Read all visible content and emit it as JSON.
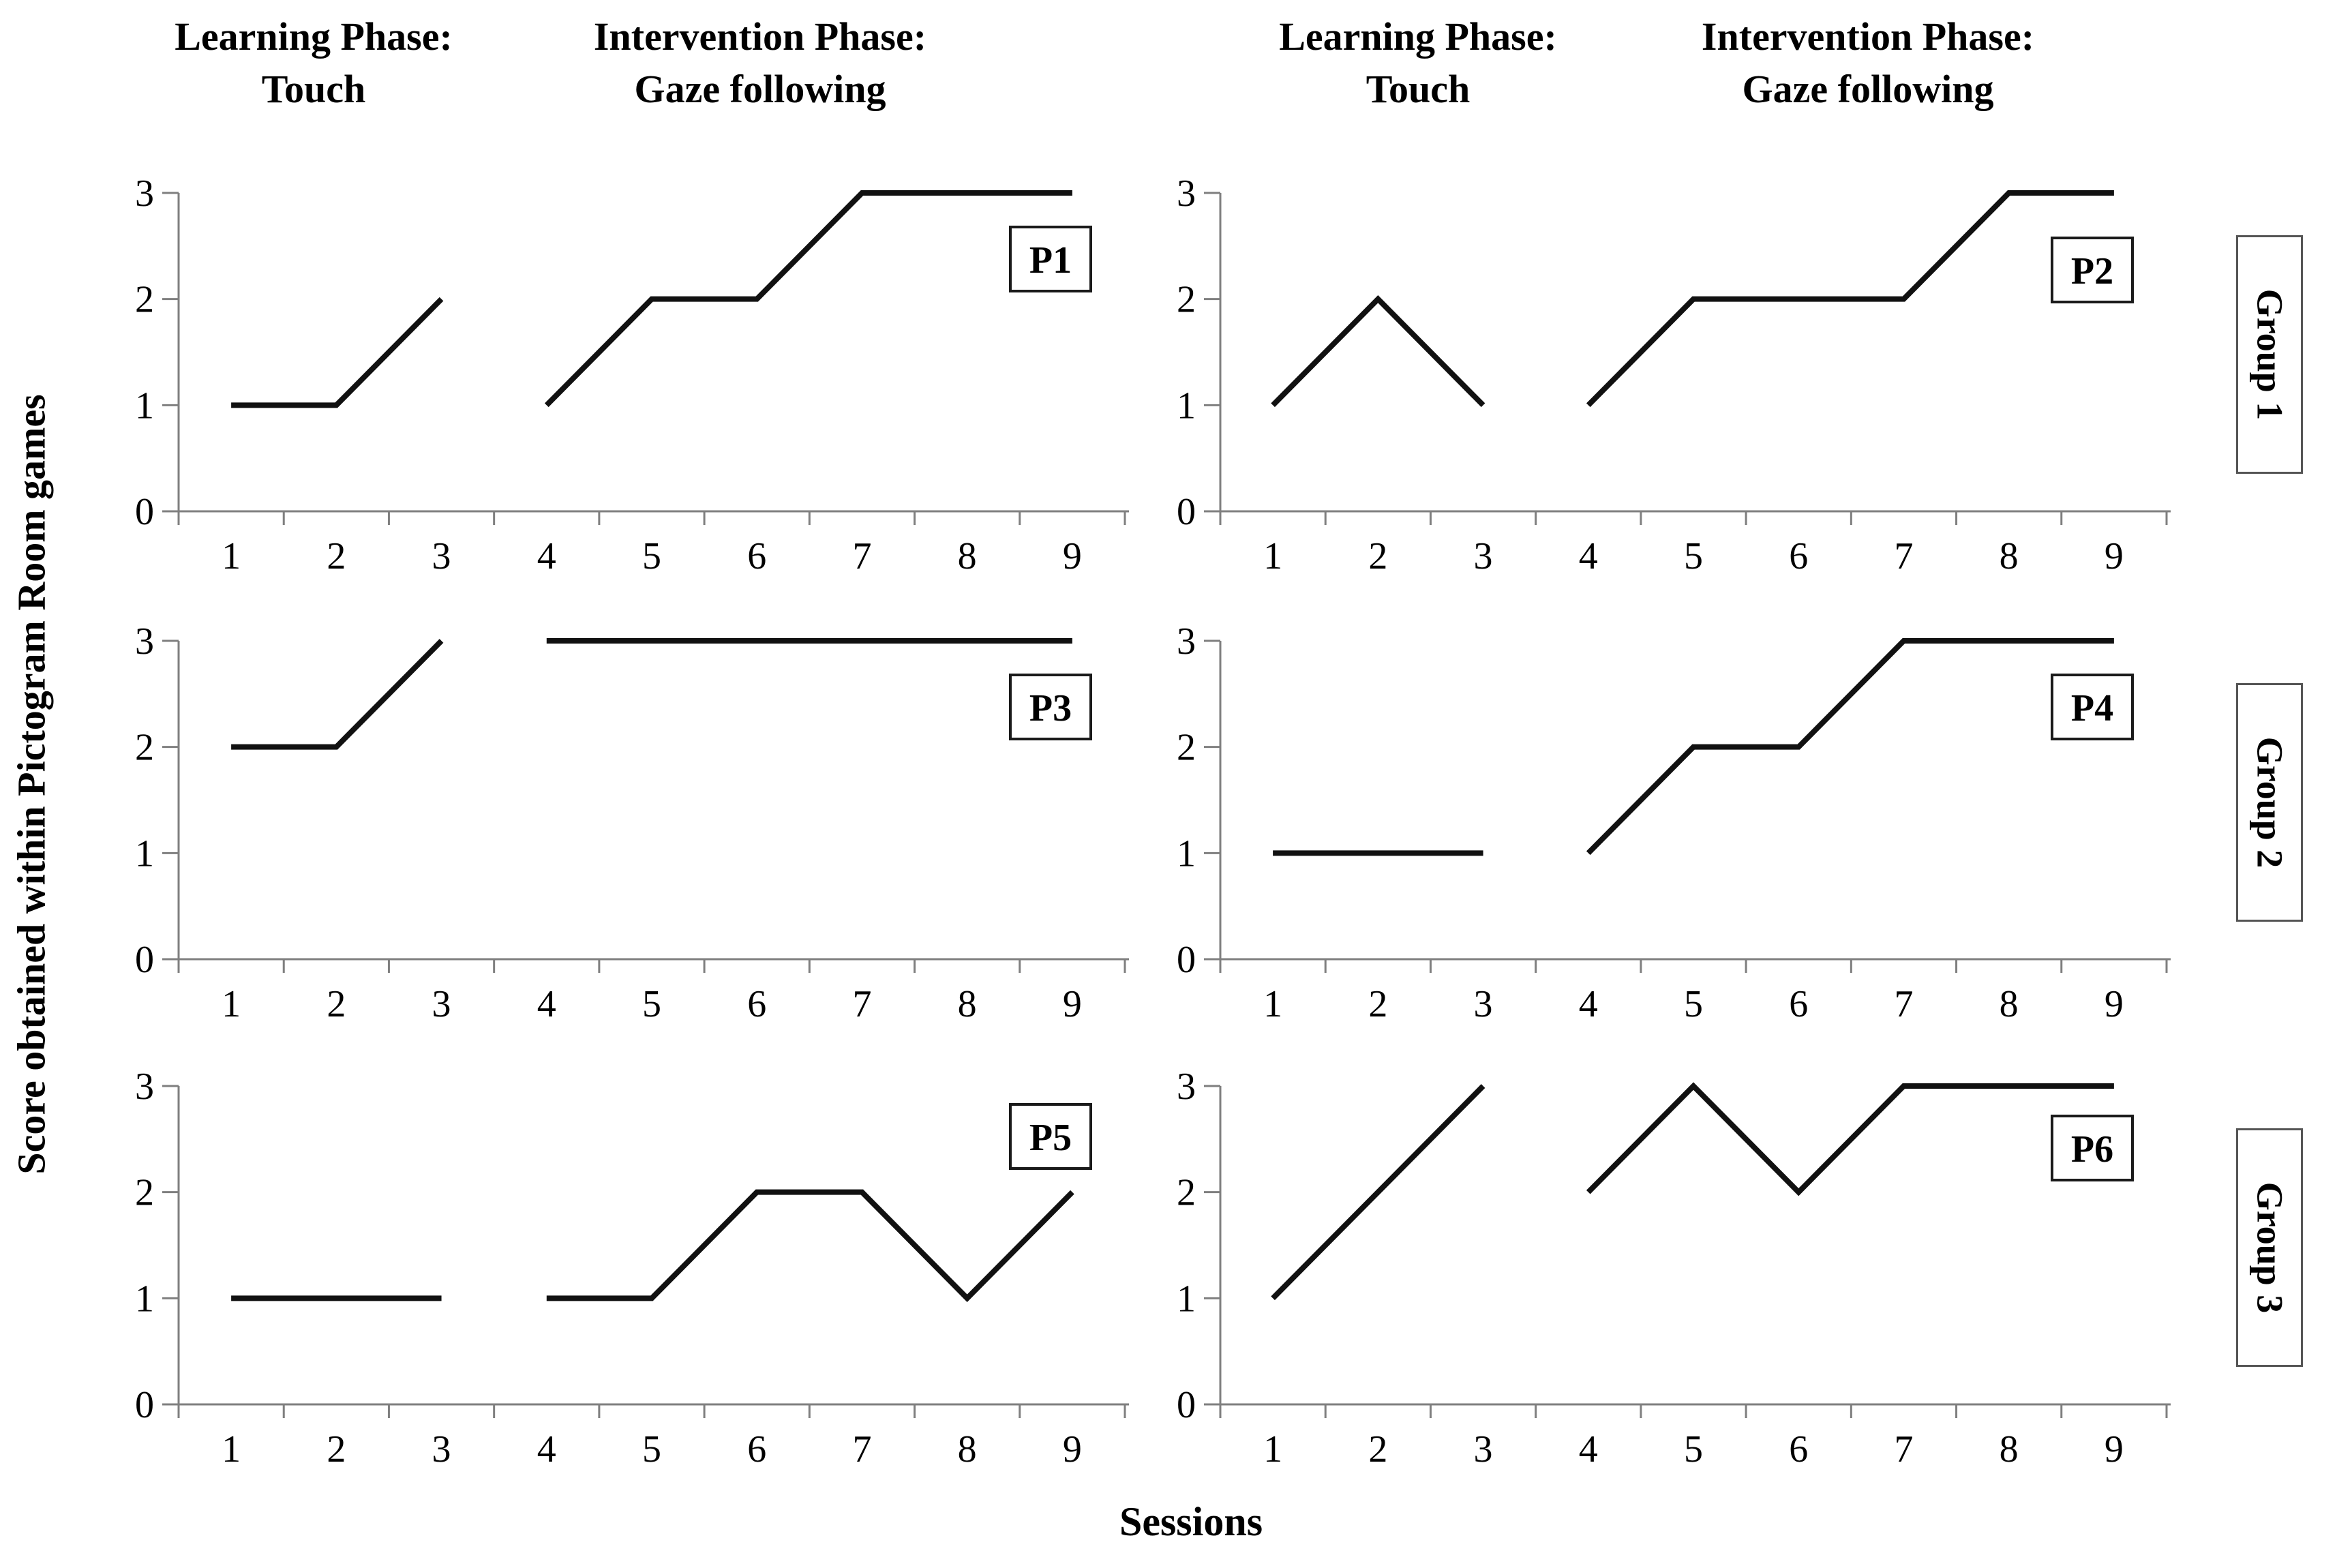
{
  "labels": {
    "ylabel": "Score obtained within Pictogram Room games",
    "xlabel": "Sessions"
  },
  "headers": [
    {
      "line1": "Learning Phase:",
      "line2": "Touch"
    },
    {
      "line1": "Intervention Phase:",
      "line2": "Gaze following"
    },
    {
      "line1": "Learning Phase:",
      "line2": "Touch"
    },
    {
      "line1": "Intervention Phase:",
      "line2": "Gaze following"
    }
  ],
  "groups": [
    "Group 1",
    "Group 2",
    "Group 3"
  ],
  "colors": {
    "line": "#111111",
    "axis": "#7f7f7f",
    "text": "#000000",
    "box_border": "#1a1a1a"
  },
  "chart_data": [
    {
      "type": "line",
      "participant": "P1",
      "group": "Group 1",
      "x_label_ticks": [
        "1",
        "2",
        "3",
        "4",
        "5",
        "6",
        "7",
        "8",
        "9"
      ],
      "y_ticks": [
        "0",
        "1",
        "2",
        "3"
      ],
      "ylim": [
        0,
        3
      ],
      "series": [
        {
          "name": "Learning Phase: Touch",
          "x": [
            1,
            2,
            3
          ],
          "values": [
            1,
            1,
            2
          ]
        },
        {
          "name": "Intervention Phase: Gaze following",
          "x": [
            4,
            5,
            6,
            7,
            8,
            9
          ],
          "values": [
            1,
            2,
            2,
            3,
            3,
            3
          ]
        }
      ]
    },
    {
      "type": "line",
      "participant": "P2",
      "group": "Group 1",
      "x_label_ticks": [
        "1",
        "2",
        "3",
        "4",
        "5",
        "6",
        "7",
        "8",
        "9"
      ],
      "y_ticks": [
        "0",
        "1",
        "2",
        "3"
      ],
      "ylim": [
        0,
        3
      ],
      "series": [
        {
          "name": "Learning Phase: Touch",
          "x": [
            1,
            2,
            3
          ],
          "values": [
            1,
            2,
            1
          ]
        },
        {
          "name": "Intervention Phase: Gaze following",
          "x": [
            4,
            5,
            6,
            7,
            8,
            9
          ],
          "values": [
            1,
            2,
            2,
            2,
            3,
            3
          ]
        }
      ]
    },
    {
      "type": "line",
      "participant": "P3",
      "group": "Group 2",
      "x_label_ticks": [
        "1",
        "2",
        "3",
        "4",
        "5",
        "6",
        "7",
        "8",
        "9"
      ],
      "y_ticks": [
        "0",
        "1",
        "2",
        "3"
      ],
      "ylim": [
        0,
        3
      ],
      "series": [
        {
          "name": "Learning Phase: Touch",
          "x": [
            1,
            2,
            3
          ],
          "values": [
            2,
            2,
            3
          ]
        },
        {
          "name": "Intervention Phase: Gaze following",
          "x": [
            4,
            5,
            6,
            7,
            8,
            9
          ],
          "values": [
            3,
            3,
            3,
            3,
            3,
            3
          ]
        }
      ]
    },
    {
      "type": "line",
      "participant": "P4",
      "group": "Group 2",
      "x_label_ticks": [
        "1",
        "2",
        "3",
        "4",
        "5",
        "6",
        "7",
        "8",
        "9"
      ],
      "y_ticks": [
        "0",
        "1",
        "2",
        "3"
      ],
      "ylim": [
        0,
        3
      ],
      "series": [
        {
          "name": "Learning Phase: Touch",
          "x": [
            1,
            2,
            3
          ],
          "values": [
            1,
            1,
            1
          ]
        },
        {
          "name": "Intervention Phase: Gaze following",
          "x": [
            4,
            5,
            6,
            7,
            8,
            9
          ],
          "values": [
            1,
            2,
            2,
            3,
            3,
            3
          ]
        }
      ]
    },
    {
      "type": "line",
      "participant": "P5",
      "group": "Group 3",
      "x_label_ticks": [
        "1",
        "2",
        "3",
        "4",
        "5",
        "6",
        "7",
        "8",
        "9"
      ],
      "y_ticks": [
        "0",
        "1",
        "2",
        "3"
      ],
      "ylim": [
        0,
        3
      ],
      "series": [
        {
          "name": "Learning Phase: Touch",
          "x": [
            1,
            2,
            3
          ],
          "values": [
            1,
            1,
            1
          ]
        },
        {
          "name": "Intervention Phase: Gaze following",
          "x": [
            4,
            5,
            6,
            7,
            8,
            9
          ],
          "values": [
            1,
            1,
            2,
            2,
            1,
            2
          ]
        }
      ]
    },
    {
      "type": "line",
      "participant": "P6",
      "group": "Group 3",
      "x_label_ticks": [
        "1",
        "2",
        "3",
        "4",
        "5",
        "6",
        "7",
        "8",
        "9"
      ],
      "y_ticks": [
        "0",
        "1",
        "2",
        "3"
      ],
      "ylim": [
        0,
        3
      ],
      "series": [
        {
          "name": "Learning Phase: Touch",
          "x": [
            1,
            2,
            3
          ],
          "values": [
            1,
            2,
            3
          ]
        },
        {
          "name": "Intervention Phase: Gaze following",
          "x": [
            4,
            5,
            6,
            7,
            8,
            9
          ],
          "values": [
            2,
            3,
            2,
            3,
            3,
            3
          ]
        }
      ]
    }
  ]
}
